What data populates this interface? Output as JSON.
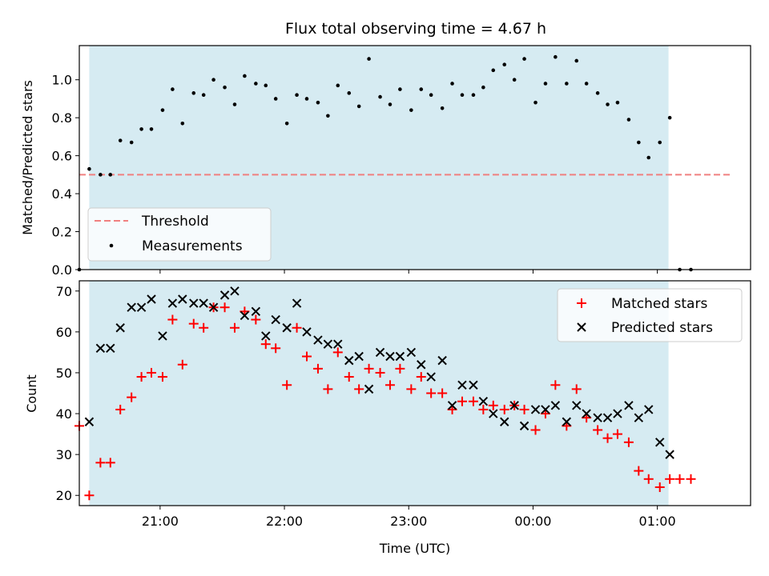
{
  "title": "Flux total observing time = 4.67 h",
  "colors": {
    "shade": "#add8e6",
    "threshold": "#f08080",
    "matched": "#ff0000",
    "predicted": "#000000",
    "measurement": "#000000"
  },
  "chart_data": [
    {
      "type": "scatter",
      "panel": "top",
      "ylabel": "Matched/Predicted stars",
      "xlim": [
        20.35,
        25.75
      ],
      "ylim": [
        0,
        1.18
      ],
      "yticks": [
        0.0,
        0.2,
        0.4,
        0.6,
        0.8,
        1.0
      ],
      "ytick_labels": [
        "0.0",
        "0.2",
        "0.4",
        "0.6",
        "0.8",
        "1.0"
      ],
      "observing_window": [
        20.43,
        25.09
      ],
      "threshold": {
        "value": 0.5,
        "x_range": [
          20.35,
          25.6
        ]
      },
      "legend": {
        "position": "bottom-left",
        "entries": [
          "Threshold",
          "Measurements"
        ]
      },
      "series": [
        {
          "name": "Measurements",
          "x": [
            20.35,
            20.43,
            20.52,
            20.6,
            20.68,
            20.77,
            20.85,
            20.93,
            21.02,
            21.1,
            21.18,
            21.27,
            21.35,
            21.43,
            21.52,
            21.6,
            21.68,
            21.77,
            21.85,
            21.93,
            22.02,
            22.1,
            22.18,
            22.27,
            22.35,
            22.43,
            22.52,
            22.6,
            22.68,
            22.77,
            22.85,
            22.93,
            23.02,
            23.1,
            23.18,
            23.27,
            23.35,
            23.43,
            23.52,
            23.6,
            23.68,
            23.77,
            23.85,
            23.93,
            24.02,
            24.1,
            24.18,
            24.27,
            24.35,
            24.43,
            24.52,
            24.6,
            24.68,
            24.77,
            24.85,
            24.93,
            25.02,
            25.1,
            25.18,
            25.27
          ],
          "y": [
            0.0,
            0.53,
            0.5,
            0.5,
            0.68,
            0.67,
            0.74,
            0.74,
            0.84,
            0.95,
            0.77,
            0.93,
            0.92,
            1.0,
            0.96,
            0.87,
            1.02,
            0.98,
            0.97,
            0.9,
            0.77,
            0.92,
            0.9,
            0.88,
            0.81,
            0.97,
            0.93,
            0.86,
            1.11,
            0.91,
            0.87,
            0.95,
            0.84,
            0.95,
            0.92,
            0.85,
            0.98,
            0.92,
            0.92,
            0.96,
            1.05,
            1.08,
            1.0,
            1.11,
            0.88,
            0.98,
            1.12,
            0.98,
            1.1,
            0.98,
            0.93,
            0.87,
            0.88,
            0.79,
            0.67,
            0.59,
            0.67,
            0.8,
            0.0,
            0.0
          ]
        }
      ]
    },
    {
      "type": "scatter",
      "panel": "bottom",
      "title": "",
      "xlabel": "Time (UTC)",
      "ylabel": "Count",
      "xlim": [
        20.35,
        25.75
      ],
      "ylim": [
        17.5,
        72.5
      ],
      "yticks": [
        20,
        30,
        40,
        50,
        60,
        70
      ],
      "xticks": [
        21,
        22,
        23,
        24,
        25
      ],
      "xtick_labels": [
        "21:00",
        "22:00",
        "23:00",
        "00:00",
        "01:00"
      ],
      "observing_window": [
        20.43,
        25.09
      ],
      "legend": {
        "position": "top-right",
        "entries": [
          "Matched stars",
          "Predicted stars"
        ]
      },
      "series": [
        {
          "name": "Matched stars",
          "marker": "+",
          "x": [
            20.35,
            20.43,
            20.52,
            20.6,
            20.68,
            20.77,
            20.85,
            20.93,
            21.02,
            21.1,
            21.18,
            21.27,
            21.35,
            21.43,
            21.52,
            21.6,
            21.68,
            21.77,
            21.85,
            21.93,
            22.02,
            22.1,
            22.18,
            22.27,
            22.35,
            22.43,
            22.52,
            22.6,
            22.68,
            22.77,
            22.85,
            22.93,
            23.02,
            23.1,
            23.18,
            23.27,
            23.35,
            23.43,
            23.52,
            23.6,
            23.68,
            23.77,
            23.85,
            23.93,
            24.02,
            24.1,
            24.18,
            24.27,
            24.35,
            24.43,
            24.52,
            24.6,
            24.68,
            24.77,
            24.85,
            24.93,
            25.02,
            25.1,
            25.18,
            25.27
          ],
          "y": [
            37,
            20,
            28,
            28,
            41,
            44,
            49,
            50,
            49,
            63,
            52,
            62,
            61,
            66,
            66,
            61,
            65,
            63,
            57,
            56,
            47,
            61,
            54,
            51,
            46,
            55,
            49,
            46,
            51,
            50,
            47,
            51,
            46,
            49,
            45,
            45,
            41,
            43,
            43,
            41,
            42,
            41,
            42,
            41,
            36,
            40,
            47,
            37,
            46,
            39,
            36,
            34,
            35,
            33,
            26,
            24,
            22,
            24,
            24,
            24
          ]
        },
        {
          "name": "Predicted stars",
          "marker": "x",
          "x": [
            20.43,
            20.52,
            20.6,
            20.68,
            20.77,
            20.85,
            20.93,
            21.02,
            21.1,
            21.18,
            21.27,
            21.35,
            21.43,
            21.52,
            21.6,
            21.68,
            21.77,
            21.85,
            21.93,
            22.02,
            22.1,
            22.18,
            22.27,
            22.35,
            22.43,
            22.52,
            22.6,
            22.68,
            22.77,
            22.85,
            22.93,
            23.02,
            23.1,
            23.18,
            23.27,
            23.35,
            23.43,
            23.52,
            23.6,
            23.68,
            23.77,
            23.85,
            23.93,
            24.02,
            24.1,
            24.18,
            24.27,
            24.35,
            24.43,
            24.52,
            24.6,
            24.68,
            24.77,
            24.85,
            24.93,
            25.02,
            25.1
          ],
          "y": [
            38,
            56,
            56,
            61,
            66,
            66,
            68,
            59,
            67,
            68,
            67,
            67,
            66,
            69,
            70,
            64,
            65,
            59,
            63,
            61,
            67,
            60,
            58,
            57,
            57,
            53,
            54,
            46,
            55,
            54,
            54,
            55,
            52,
            49,
            53,
            42,
            47,
            47,
            43,
            40,
            38,
            42,
            37,
            41,
            41,
            42,
            38,
            42,
            40,
            39,
            39,
            40,
            42,
            39,
            41,
            33,
            30
          ]
        }
      ]
    }
  ]
}
